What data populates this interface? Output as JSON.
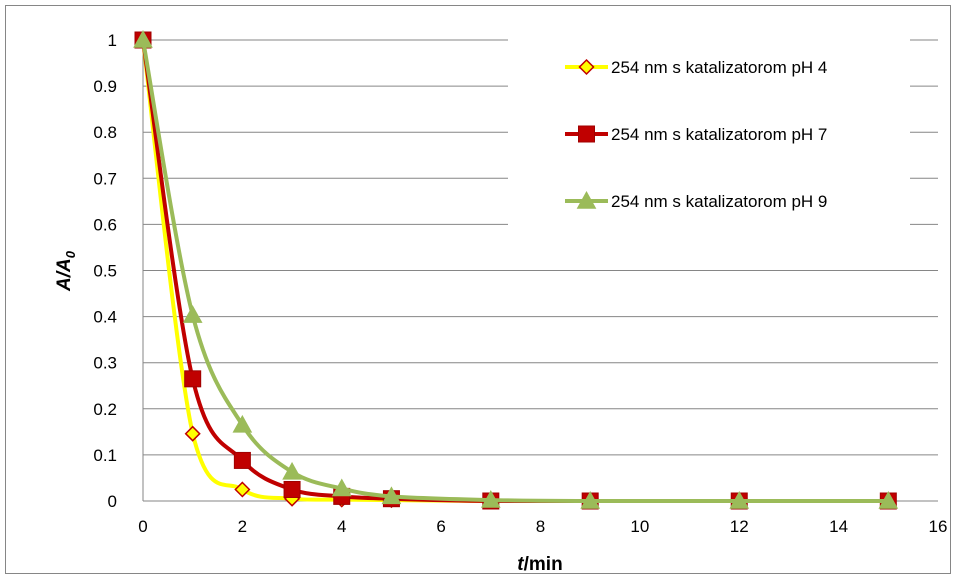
{
  "chart_data": {
    "type": "scatter",
    "title": "",
    "xlabel_main": "t",
    "xlabel_unit": "/min",
    "ylabel_main": "A/A",
    "ylabel_sub": "0",
    "xlim": [
      0,
      16
    ],
    "ylim": [
      0,
      1
    ],
    "x_ticks": [
      "0",
      "2",
      "4",
      "6",
      "8",
      "10",
      "12",
      "14",
      "16"
    ],
    "y_ticks": [
      "0",
      "0.1",
      "0.2",
      "0.3",
      "0.4",
      "0.5",
      "0.6",
      "0.7",
      "0.8",
      "0.9",
      "1"
    ],
    "grid": "horizontal",
    "legend_position": "top-right",
    "series": [
      {
        "name": "254 nm s katalizatorom pH 4",
        "line_color": "#FFFF00",
        "marker": "diamond",
        "marker_fill": "#FFFF00",
        "marker_stroke": "#C00000",
        "x": [
          0,
          1,
          2,
          3,
          4,
          5,
          7,
          9,
          12,
          15
        ],
        "y": [
          1,
          0.146,
          0.025,
          0.005,
          0.003,
          0.002,
          0,
          0,
          0,
          0
        ]
      },
      {
        "name": "254 nm s katalizatorom pH 7",
        "line_color": "#C00000",
        "marker": "square",
        "marker_fill": "#C00000",
        "marker_stroke": "#A00000",
        "x": [
          0,
          1,
          2,
          3,
          4,
          5,
          7,
          9,
          12,
          15
        ],
        "y": [
          1,
          0.265,
          0.088,
          0.025,
          0.01,
          0.005,
          0,
          0,
          0,
          0
        ]
      },
      {
        "name": "254 nm s katalizatorom pH 9",
        "line_color": "#9BBB59",
        "marker": "triangle",
        "marker_fill": "#9BBB59",
        "marker_stroke": "#9BBB59",
        "x": [
          0,
          1,
          2,
          3,
          4,
          5,
          7,
          9,
          12,
          15
        ],
        "y": [
          1,
          0.403,
          0.165,
          0.063,
          0.027,
          0.01,
          0.002,
          0,
          0,
          0
        ]
      }
    ]
  }
}
